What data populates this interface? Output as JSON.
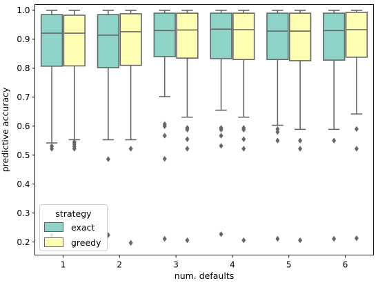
{
  "chart_data": {
    "type": "box",
    "xlabel": "num. defaults",
    "ylabel": "predictive accuracy",
    "ylim": [
      0.155,
      1.02
    ],
    "yticks": [
      0.2,
      0.3,
      0.4,
      0.5,
      0.6,
      0.7,
      0.8,
      0.9,
      1.0
    ],
    "ytick_labels": [
      "0.2",
      "0.3",
      "0.4",
      "0.5",
      "0.6",
      "0.7",
      "0.8",
      "0.9",
      "1.0"
    ],
    "categories": [
      "1",
      "2",
      "3",
      "4",
      "5",
      "6"
    ],
    "grid": false,
    "legend": {
      "title": "strategy",
      "position": "lower-left"
    },
    "series": [
      {
        "name": "exact",
        "color": "#8dd3c7",
        "boxes": [
          {
            "whislo": 0.542,
            "q1": 0.807,
            "median": 0.921,
            "q3": 0.985,
            "whishi": 1.0,
            "fliers": [
              0.531,
              0.522,
              0.224
            ]
          },
          {
            "whislo": 0.553,
            "q1": 0.802,
            "median": 0.914,
            "q3": 0.985,
            "whishi": 1.0,
            "fliers": [
              0.486,
              0.224
            ]
          },
          {
            "whislo": 0.702,
            "q1": 0.84,
            "median": 0.93,
            "q3": 0.99,
            "whishi": 1.0,
            "fliers": [
              0.607,
              0.6,
              0.567,
              0.487,
              0.211
            ]
          },
          {
            "whislo": 0.655,
            "q1": 0.833,
            "median": 0.935,
            "q3": 0.99,
            "whishi": 1.0,
            "fliers": [
              0.594,
              0.588,
              0.567,
              0.532,
              0.227
            ]
          },
          {
            "whislo": 0.603,
            "q1": 0.83,
            "median": 0.928,
            "q3": 0.99,
            "whishi": 1.0,
            "fliers": [
              0.59,
              0.58,
              0.55,
              0.211
            ]
          },
          {
            "whislo": 0.589,
            "q1": 0.828,
            "median": 0.93,
            "q3": 0.99,
            "whishi": 1.0,
            "fliers": [
              0.55,
              0.211
            ]
          }
        ]
      },
      {
        "name": "greedy",
        "color": "#ffffb3",
        "boxes": [
          {
            "whislo": 0.553,
            "q1": 0.808,
            "median": 0.921,
            "q3": 0.983,
            "whishi": 1.0,
            "fliers": [
              0.545,
              0.538,
              0.53,
              0.522
            ]
          },
          {
            "whislo": 0.553,
            "q1": 0.81,
            "median": 0.926,
            "q3": 0.988,
            "whishi": 1.0,
            "fliers": [
              0.522,
              0.197
            ]
          },
          {
            "whislo": 0.631,
            "q1": 0.835,
            "median": 0.932,
            "q3": 0.99,
            "whishi": 1.0,
            "fliers": [
              0.594,
              0.588,
              0.555,
              0.522,
              0.206
            ]
          },
          {
            "whislo": 0.631,
            "q1": 0.83,
            "median": 0.933,
            "q3": 0.99,
            "whishi": 1.0,
            "fliers": [
              0.594,
              0.588,
              0.555,
              0.522,
              0.206
            ]
          },
          {
            "whislo": 0.589,
            "q1": 0.826,
            "median": 0.928,
            "q3": 0.99,
            "whishi": 1.0,
            "fliers": [
              0.55,
              0.522,
              0.206
            ]
          },
          {
            "whislo": 0.642,
            "q1": 0.838,
            "median": 0.933,
            "q3": 0.993,
            "whishi": 1.0,
            "fliers": [
              0.59,
              0.522,
              0.213
            ]
          }
        ]
      }
    ]
  }
}
